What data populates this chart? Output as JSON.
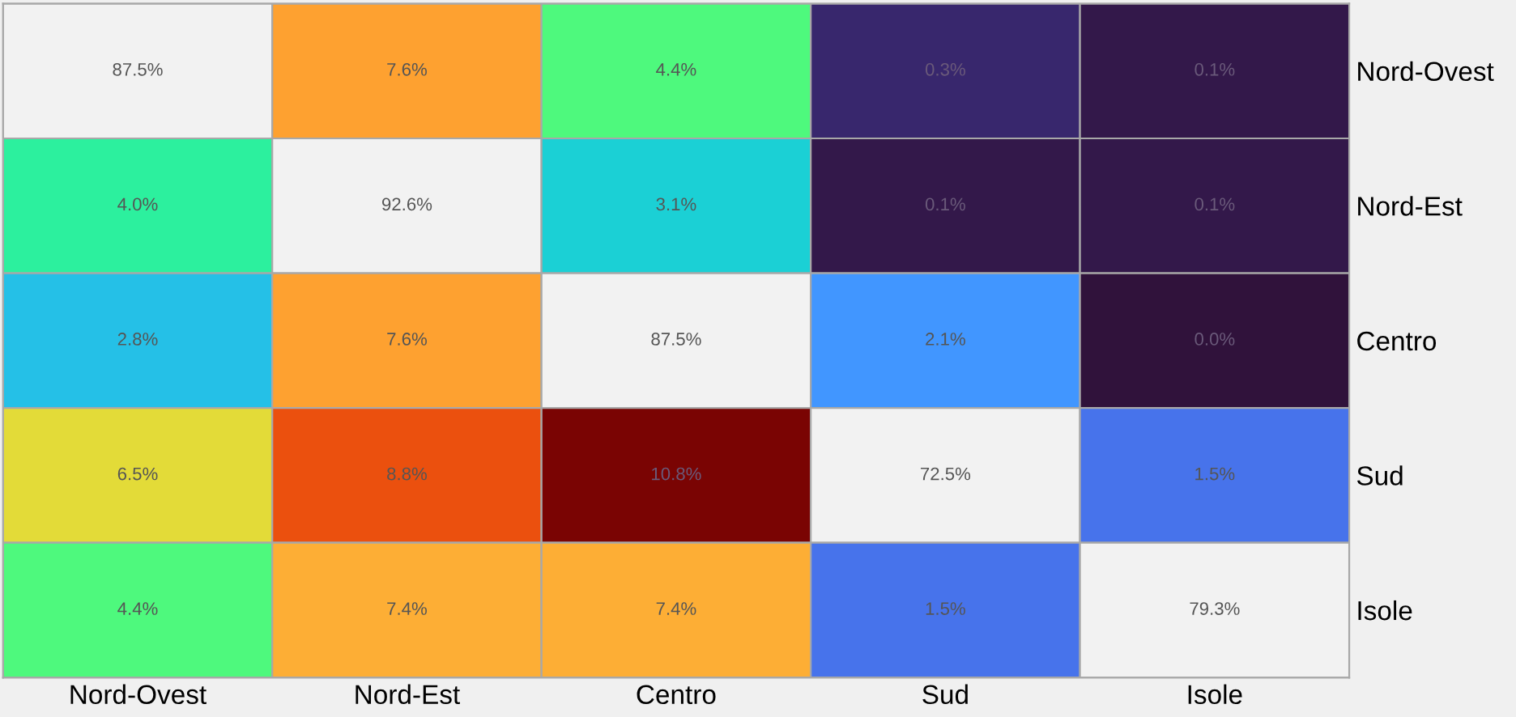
{
  "chart_data": {
    "type": "heatmap",
    "categories": [
      "Nord-Ovest",
      "Nord-Est",
      "Centro",
      "Sud",
      "Isole"
    ],
    "y_categories": [
      "Nord-Ovest",
      "Nord-Est",
      "Centro",
      "Sud",
      "Isole"
    ],
    "cells": [
      [
        87.5,
        7.6,
        4.4,
        0.3,
        0.1
      ],
      [
        4.0,
        92.6,
        3.1,
        0.1,
        0.1
      ],
      [
        2.8,
        7.6,
        87.5,
        2.1,
        0.0
      ],
      [
        6.5,
        8.8,
        10.8,
        72.5,
        1.5
      ],
      [
        4.4,
        7.4,
        7.4,
        1.5,
        79.3
      ]
    ],
    "cell_labels": [
      [
        "87.5%",
        "7.6%",
        "4.4%",
        "0.3%",
        "0.1%"
      ],
      [
        "4.0%",
        "92.6%",
        "3.1%",
        "0.1%",
        "0.1%"
      ],
      [
        "2.8%",
        "7.6%",
        "87.5%",
        "2.1%",
        "0.0%"
      ],
      [
        "6.5%",
        "8.8%",
        "10.8%",
        "72.5%",
        "1.5%"
      ],
      [
        "4.4%",
        "7.4%",
        "7.4%",
        "1.5%",
        "79.3%"
      ]
    ]
  }
}
